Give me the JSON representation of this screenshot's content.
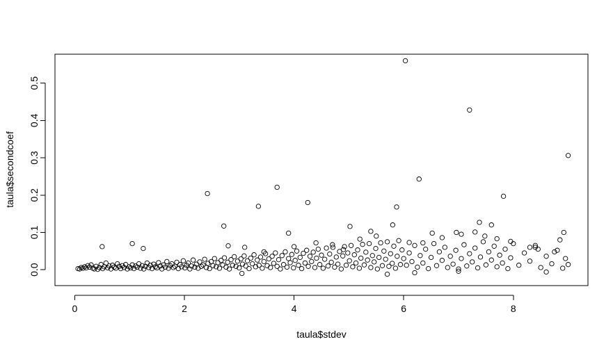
{
  "chart_data": {
    "type": "scatter",
    "title": "",
    "xlabel": "taula$stdev",
    "ylabel": "taula$secondcoef",
    "xlim": [
      -0.36,
      9.36
    ],
    "ylim": [
      -0.0425,
      0.5775
    ],
    "x_ticks": [
      0,
      2,
      4,
      6,
      8
    ],
    "y_ticks": [
      0.0,
      0.1,
      0.2,
      0.3,
      0.4,
      0.5
    ],
    "x_tick_labels": [
      "0",
      "2",
      "4",
      "6",
      "8"
    ],
    "y_tick_labels": [
      "0.0",
      "0.1",
      "0.2",
      "0.3",
      "0.4",
      "0.5"
    ],
    "marker": "open-circle",
    "grid": false,
    "legend": "none",
    "points": [
      [
        0.06,
        0.003
      ],
      [
        0.09,
        0.002
      ],
      [
        0.12,
        0.006
      ],
      [
        0.15,
        0.004
      ],
      [
        0.18,
        0.008
      ],
      [
        0.21,
        0.005
      ],
      [
        0.24,
        0.011
      ],
      [
        0.27,
        0.007
      ],
      [
        0.3,
        0.013
      ],
      [
        0.33,
        0.004
      ],
      [
        0.36,
        0.002
      ],
      [
        0.39,
        0.009
      ],
      [
        0.42,
        0.001
      ],
      [
        0.45,
        0.006
      ],
      [
        0.48,
        0.014
      ],
      [
        0.51,
        0.003
      ],
      [
        0.54,
        0.008
      ],
      [
        0.57,
        0.018
      ],
      [
        0.6,
        0.005
      ],
      [
        0.63,
        0.01
      ],
      [
        0.66,
        0.002
      ],
      [
        0.69,
        0.012
      ],
      [
        0.72,
        0.007
      ],
      [
        0.75,
        0.004
      ],
      [
        0.78,
        0.016
      ],
      [
        0.81,
        0.009
      ],
      [
        0.84,
        0.003
      ],
      [
        0.87,
        0.011
      ],
      [
        0.9,
        0.006
      ],
      [
        0.93,
        0.014
      ],
      [
        0.96,
        0.002
      ],
      [
        0.99,
        0.008
      ],
      [
        1.02,
        0.005
      ],
      [
        1.05,
        0.013
      ],
      [
        1.08,
        0.003
      ],
      [
        1.11,
        0.01
      ],
      [
        1.14,
        0.007
      ],
      [
        1.17,
        0.016
      ],
      [
        1.2,
        0.004
      ],
      [
        1.23,
        0.011
      ],
      [
        1.26,
        0.002
      ],
      [
        1.29,
        0.009
      ],
      [
        1.32,
        0.018
      ],
      [
        1.35,
        0.006
      ],
      [
        1.38,
        0.012
      ],
      [
        1.41,
        0.003
      ],
      [
        1.44,
        0.015
      ],
      [
        1.47,
        0.008
      ],
      [
        1.5,
        0.005
      ],
      [
        1.53,
        0.019
      ],
      [
        1.56,
        0.01
      ],
      [
        1.59,
        0.002
      ],
      [
        1.62,
        0.013
      ],
      [
        1.65,
        0.007
      ],
      [
        1.68,
        0.022
      ],
      [
        1.71,
        0.004
      ],
      [
        1.74,
        0.011
      ],
      [
        1.77,
        0.016
      ],
      [
        1.8,
        0.006
      ],
      [
        1.83,
        0.009
      ],
      [
        1.86,
        0.02
      ],
      [
        1.89,
        0.003
      ],
      [
        1.92,
        0.014
      ],
      [
        1.95,
        0.008
      ],
      [
        1.98,
        0.024
      ],
      [
        2.01,
        0.005
      ],
      [
        2.04,
        0.012
      ],
      [
        2.07,
        0.018
      ],
      [
        2.1,
        0.002
      ],
      [
        2.13,
        0.01
      ],
      [
        2.16,
        0.026
      ],
      [
        2.19,
        0.007
      ],
      [
        2.22,
        0.015
      ],
      [
        2.25,
        0.004
      ],
      [
        2.28,
        0.021
      ],
      [
        2.31,
        0.009
      ],
      [
        2.34,
        0.013
      ],
      [
        2.37,
        0.028
      ],
      [
        2.4,
        0.006
      ],
      [
        2.43,
        0.017
      ],
      [
        2.46,
        0.003
      ],
      [
        2.49,
        0.022
      ],
      [
        2.52,
        0.011
      ],
      [
        2.55,
        0.03
      ],
      [
        2.58,
        0.008
      ],
      [
        2.61,
        0.019
      ],
      [
        2.64,
        0.004
      ],
      [
        2.67,
        0.025
      ],
      [
        2.7,
        0.013
      ],
      [
        2.73,
        0.032
      ],
      [
        2.76,
        0.007
      ],
      [
        2.79,
        0.02
      ],
      [
        2.82,
        0.002
      ],
      [
        2.85,
        0.027
      ],
      [
        2.88,
        0.012
      ],
      [
        2.91,
        0.035
      ],
      [
        2.94,
        0.009
      ],
      [
        2.97,
        0.023
      ],
      [
        3.0,
        0.005
      ],
      [
        3.03,
        0.029
      ],
      [
        3.06,
        0.015
      ],
      [
        3.09,
        0.037
      ],
      [
        3.12,
        0.01
      ],
      [
        3.15,
        0.024
      ],
      [
        3.18,
        0.003
      ],
      [
        3.21,
        0.031
      ],
      [
        3.24,
        0.016
      ],
      [
        3.27,
        0.04
      ],
      [
        3.3,
        0.008
      ],
      [
        3.33,
        0.026
      ],
      [
        3.36,
        0.012
      ],
      [
        3.39,
        0.034
      ],
      [
        3.42,
        0.004
      ],
      [
        3.45,
        0.022
      ],
      [
        3.48,
        0.043
      ],
      [
        3.51,
        0.011
      ],
      [
        3.54,
        0.029
      ],
      [
        3.57,
        0.006
      ],
      [
        3.6,
        0.036
      ],
      [
        3.63,
        0.017
      ],
      [
        3.66,
        0.045
      ],
      [
        3.69,
        0.009
      ],
      [
        3.72,
        0.027
      ],
      [
        3.75,
        0.002
      ],
      [
        3.78,
        0.038
      ],
      [
        3.81,
        0.014
      ],
      [
        3.84,
        0.048
      ],
      [
        3.87,
        0.007
      ],
      [
        3.9,
        0.03
      ],
      [
        3.93,
        0.019
      ],
      [
        3.96,
        0.041
      ],
      [
        3.99,
        0.005
      ],
      [
        4.02,
        0.025
      ],
      [
        4.05,
        0.05
      ],
      [
        4.08,
        0.012
      ],
      [
        4.11,
        0.033
      ],
      [
        4.14,
        0.003
      ],
      [
        4.17,
        0.044
      ],
      [
        4.2,
        0.018
      ],
      [
        4.23,
        0.052
      ],
      [
        4.26,
        0.009
      ],
      [
        4.29,
        0.036
      ],
      [
        4.32,
        0.022
      ],
      [
        4.35,
        0.047
      ],
      [
        4.38,
        0.006
      ],
      [
        4.41,
        0.031
      ],
      [
        4.44,
        0.055
      ],
      [
        4.47,
        0.014
      ],
      [
        4.5,
        0.039
      ],
      [
        4.53,
        0.004
      ],
      [
        4.56,
        0.028
      ],
      [
        4.59,
        0.058
      ],
      [
        4.62,
        0.01
      ],
      [
        4.65,
        0.042
      ],
      [
        4.68,
        0.02
      ],
      [
        4.71,
        0.06
      ],
      [
        4.74,
        0.007
      ],
      [
        4.77,
        0.034
      ],
      [
        4.8,
        0.015
      ],
      [
        4.83,
        0.049
      ],
      [
        4.86,
        0.002
      ],
      [
        4.89,
        0.037
      ],
      [
        4.92,
        0.062
      ],
      [
        4.95,
        0.012
      ],
      [
        4.98,
        0.045
      ],
      [
        5.01,
        0.024
      ],
      [
        5.04,
        0.065
      ],
      [
        5.07,
        0.008
      ],
      [
        5.1,
        0.04
      ],
      [
        5.13,
        0.018
      ],
      [
        5.16,
        0.053
      ],
      [
        5.19,
        0.004
      ],
      [
        5.22,
        0.031
      ],
      [
        5.25,
        0.068
      ],
      [
        5.28,
        0.013
      ],
      [
        5.31,
        0.047
      ],
      [
        5.34,
        0.026
      ],
      [
        5.37,
        0.07
      ],
      [
        5.4,
        0.006
      ],
      [
        5.43,
        0.038
      ],
      [
        5.46,
        0.021
      ],
      [
        5.49,
        0.057
      ],
      [
        5.52,
        0.002
      ],
      [
        5.55,
        0.033
      ],
      [
        5.58,
        0.072
      ],
      [
        5.61,
        0.011
      ],
      [
        5.64,
        0.05
      ],
      [
        5.67,
        0.028
      ],
      [
        5.7,
        0.075
      ],
      [
        5.73,
        0.009
      ],
      [
        5.76,
        0.043
      ],
      [
        5.79,
        0.017
      ],
      [
        5.82,
        0.063
      ],
      [
        5.85,
        0.004
      ],
      [
        5.88,
        0.036
      ],
      [
        5.91,
        0.078
      ],
      [
        5.94,
        0.014
      ],
      [
        5.97,
        0.053
      ],
      [
        6.0,
        0.03
      ],
      [
        6.05,
        0.012
      ],
      [
        6.1,
        0.045
      ],
      [
        6.15,
        0.022
      ],
      [
        6.2,
        0.065
      ],
      [
        6.25,
        0.007
      ],
      [
        6.3,
        0.038
      ],
      [
        6.35,
        0.018
      ],
      [
        6.4,
        0.055
      ],
      [
        6.45,
        0.003
      ],
      [
        6.5,
        0.033
      ],
      [
        6.55,
        0.07
      ],
      [
        6.6,
        0.011
      ],
      [
        6.65,
        0.048
      ],
      [
        6.7,
        0.025
      ],
      [
        6.75,
        0.06
      ],
      [
        6.8,
        0.006
      ],
      [
        6.85,
        0.036
      ],
      [
        6.9,
        0.015
      ],
      [
        6.95,
        0.052
      ],
      [
        7.0,
        0.002
      ],
      [
        7.05,
        0.03
      ],
      [
        7.1,
        0.067
      ],
      [
        7.15,
        0.01
      ],
      [
        7.2,
        0.043
      ],
      [
        7.25,
        0.021
      ],
      [
        7.3,
        0.058
      ],
      [
        7.35,
        0.005
      ],
      [
        7.4,
        0.034
      ],
      [
        7.45,
        0.075
      ],
      [
        7.5,
        0.013
      ],
      [
        7.55,
        0.048
      ],
      [
        7.6,
        0.026
      ],
      [
        7.65,
        0.063
      ],
      [
        7.7,
        0.008
      ],
      [
        7.75,
        0.039
      ],
      [
        7.8,
        0.018
      ],
      [
        7.85,
        0.055
      ],
      [
        7.9,
        0.003
      ],
      [
        7.95,
        0.032
      ],
      [
        8.0,
        0.07
      ],
      [
        8.1,
        0.012
      ],
      [
        8.2,
        0.045
      ],
      [
        8.3,
        0.023
      ],
      [
        8.4,
        0.06
      ],
      [
        8.5,
        0.006
      ],
      [
        8.6,
        0.036
      ],
      [
        8.7,
        0.016
      ],
      [
        8.8,
        0.052
      ],
      [
        8.9,
        0.004
      ],
      [
        8.95,
        0.03
      ],
      [
        9.0,
        0.014
      ],
      [
        0.5,
        0.062
      ],
      [
        1.05,
        0.07
      ],
      [
        1.25,
        0.057
      ],
      [
        2.42,
        0.204
      ],
      [
        2.72,
        0.117
      ],
      [
        3.35,
        0.17
      ],
      [
        3.69,
        0.221
      ],
      [
        4.25,
        0.18
      ],
      [
        3.9,
        0.098
      ],
      [
        5.02,
        0.116
      ],
      [
        5.4,
        0.103
      ],
      [
        5.8,
        0.12
      ],
      [
        5.87,
        0.168
      ],
      [
        6.03,
        0.56
      ],
      [
        6.28,
        0.243
      ],
      [
        6.52,
        0.098
      ],
      [
        6.96,
        0.1
      ],
      [
        7.2,
        0.428
      ],
      [
        7.38,
        0.127
      ],
      [
        7.6,
        0.12
      ],
      [
        7.82,
        0.197
      ],
      [
        8.4,
        0.065
      ],
      [
        8.85,
        0.08
      ],
      [
        8.92,
        0.1
      ],
      [
        9.0,
        0.306
      ],
      [
        5.7,
        -0.012
      ],
      [
        6.2,
        -0.008
      ],
      [
        7.0,
        -0.004
      ],
      [
        8.6,
        -0.006
      ],
      [
        3.05,
        -0.01
      ],
      [
        2.8,
        0.064
      ],
      [
        3.1,
        0.06
      ],
      [
        3.45,
        0.048
      ],
      [
        4.0,
        0.062
      ],
      [
        4.4,
        0.072
      ],
      [
        4.7,
        0.067
      ],
      [
        4.9,
        0.054
      ],
      [
        5.2,
        0.082
      ],
      [
        5.5,
        0.09
      ],
      [
        6.1,
        0.073
      ],
      [
        6.35,
        0.072
      ],
      [
        6.7,
        0.086
      ],
      [
        7.05,
        0.095
      ],
      [
        7.3,
        0.101
      ],
      [
        7.48,
        0.09
      ],
      [
        7.7,
        0.083
      ],
      [
        7.95,
        0.076
      ],
      [
        8.3,
        0.06
      ],
      [
        8.45,
        0.055
      ],
      [
        8.75,
        0.048
      ]
    ]
  }
}
